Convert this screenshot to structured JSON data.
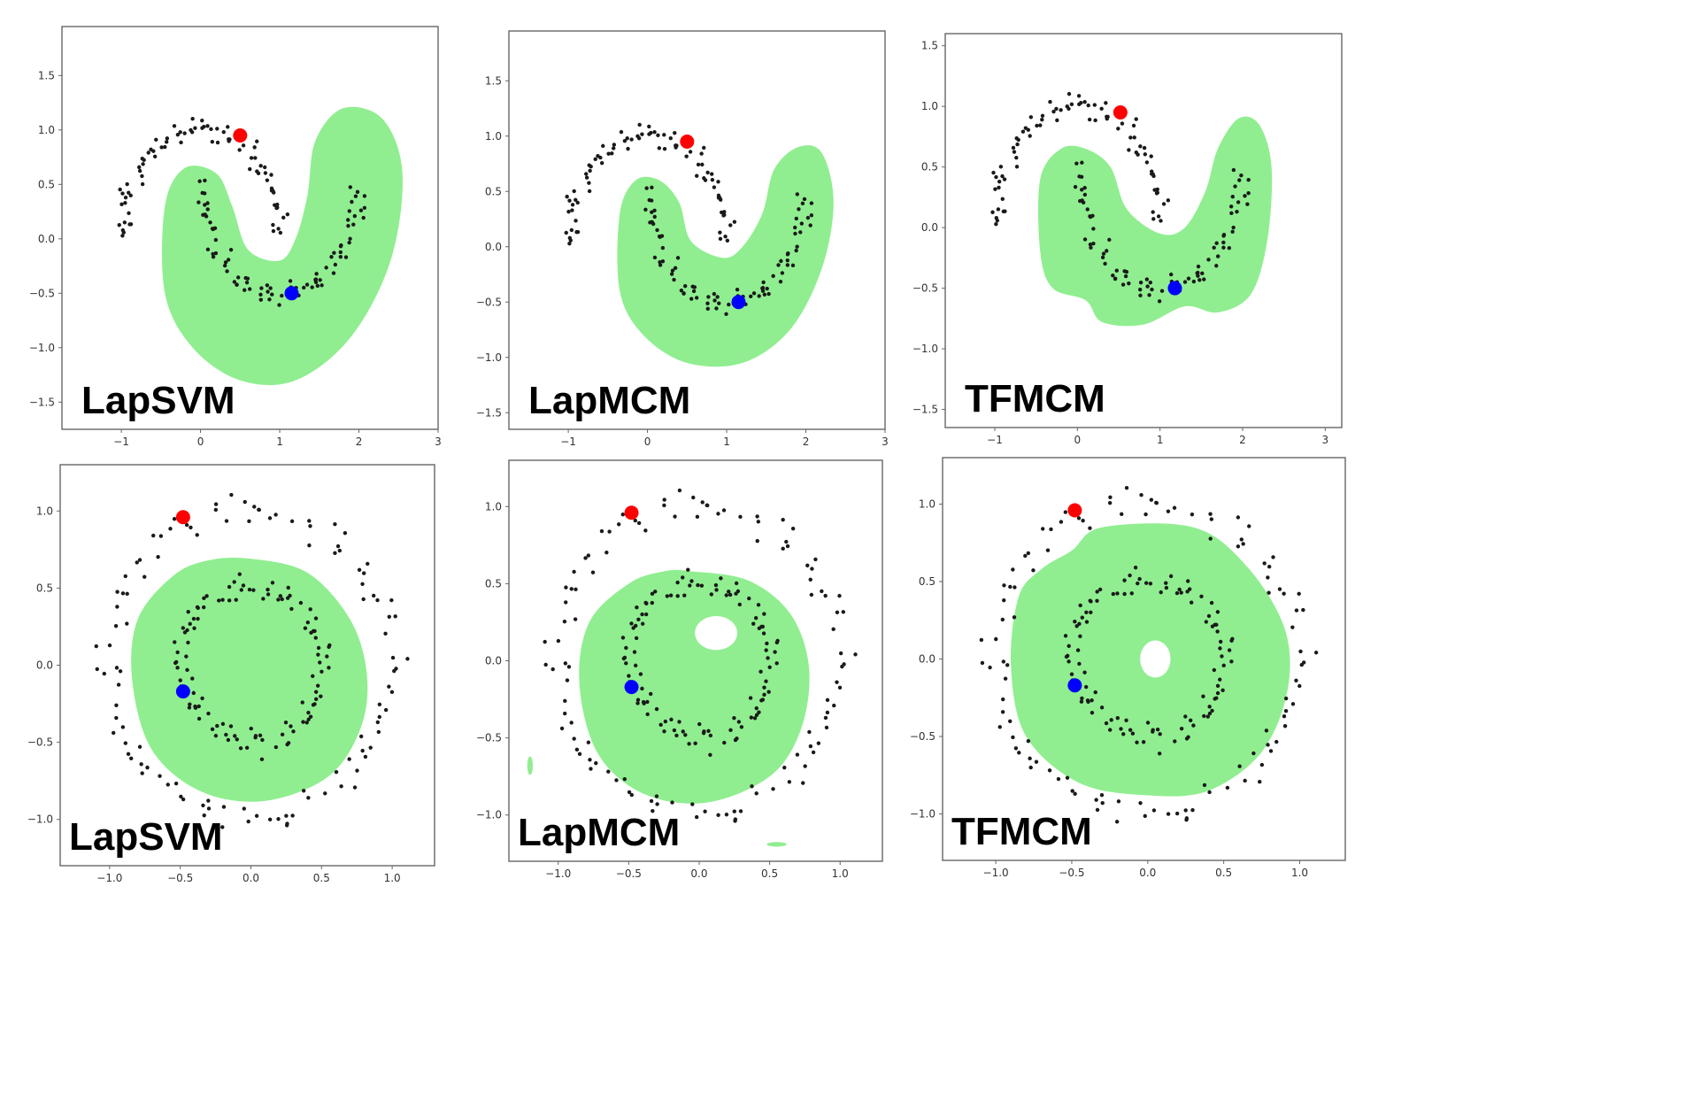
{
  "colors": {
    "decision_region": "#90ee90",
    "unlabeled_points": "#1a1a1a",
    "labeled_a": "#ff0000",
    "labeled_b": "#0000ff"
  },
  "chart_data": [
    {
      "type": "scatter",
      "title": "",
      "xlabel": "",
      "ylabel": "",
      "label": "LapSVM",
      "dataset": "moons",
      "xlim": [
        -1.75,
        3.0
      ],
      "ylim": [
        -1.75,
        1.95
      ],
      "xticks": [
        "-1",
        "0",
        "1",
        "2",
        "3"
      ],
      "yticks": [
        "1.5",
        "1.0",
        "0.5",
        "0.0",
        "-0.5",
        "-1.0",
        "-1.5"
      ],
      "labeled_points": [
        {
          "x": 0.5,
          "y": 0.95,
          "color": "red"
        },
        {
          "x": 1.15,
          "y": -0.5,
          "color": "blue"
        }
      ],
      "region_outline": [
        [
          -0.45,
          0.3
        ],
        [
          -0.45,
          -0.5
        ],
        [
          -0.1,
          -1.0
        ],
        [
          0.5,
          -1.3
        ],
        [
          1.2,
          -1.3
        ],
        [
          1.9,
          -0.9
        ],
        [
          2.4,
          -0.2
        ],
        [
          2.55,
          0.6
        ],
        [
          2.3,
          1.1
        ],
        [
          1.8,
          1.2
        ],
        [
          1.45,
          0.9
        ],
        [
          1.35,
          0.4
        ],
        [
          1.2,
          0.0
        ],
        [
          1.0,
          -0.2
        ],
        [
          0.6,
          -0.1
        ],
        [
          0.4,
          0.3
        ],
        [
          0.2,
          0.6
        ],
        [
          -0.2,
          0.65
        ]
      ],
      "region_holes": []
    },
    {
      "type": "scatter",
      "title": "",
      "xlabel": "",
      "ylabel": "",
      "label": "LapMCM",
      "dataset": "moons",
      "xlim": [
        -1.75,
        3.0
      ],
      "ylim": [
        -1.65,
        1.95
      ],
      "xticks": [
        "-1",
        "0",
        "1",
        "2",
        "3"
      ],
      "yticks": [
        "1.5",
        "1.0",
        "0.5",
        "0.0",
        "-0.5",
        "-1.0",
        "-1.5"
      ],
      "labeled_points": [
        {
          "x": 0.5,
          "y": 0.95,
          "color": "red"
        },
        {
          "x": 1.15,
          "y": -0.5,
          "color": "blue"
        }
      ],
      "region_outline": [
        [
          -0.35,
          0.3
        ],
        [
          -0.35,
          -0.4
        ],
        [
          -0.05,
          -0.8
        ],
        [
          0.5,
          -1.05
        ],
        [
          1.2,
          -1.05
        ],
        [
          1.8,
          -0.75
        ],
        [
          2.2,
          -0.2
        ],
        [
          2.35,
          0.4
        ],
        [
          2.2,
          0.85
        ],
        [
          1.9,
          0.9
        ],
        [
          1.6,
          0.7
        ],
        [
          1.45,
          0.3
        ],
        [
          1.2,
          0.0
        ],
        [
          0.95,
          -0.1
        ],
        [
          0.55,
          0.05
        ],
        [
          0.4,
          0.4
        ],
        [
          0.15,
          0.6
        ],
        [
          -0.15,
          0.6
        ]
      ],
      "region_holes": []
    },
    {
      "type": "scatter",
      "title": "",
      "xlabel": "",
      "ylabel": "",
      "label": "TFMCM",
      "dataset": "moons",
      "xlim": [
        -1.6,
        3.2
      ],
      "ylim": [
        -1.65,
        1.6
      ],
      "xticks": [
        "-1",
        "0",
        "1",
        "2",
        "3"
      ],
      "yticks": [
        "1.5",
        "1.0",
        "0.5",
        "0.0",
        "-0.5",
        "-1.0",
        "-1.5"
      ],
      "labeled_points": [
        {
          "x": 0.52,
          "y": 0.95,
          "color": "red"
        },
        {
          "x": 1.18,
          "y": -0.5,
          "color": "blue"
        }
      ],
      "region_outline": [
        [
          -0.45,
          0.4
        ],
        [
          -0.45,
          -0.2
        ],
        [
          -0.3,
          -0.5
        ],
        [
          0.1,
          -0.6
        ],
        [
          0.3,
          -0.78
        ],
        [
          0.8,
          -0.8
        ],
        [
          1.3,
          -0.65
        ],
        [
          1.7,
          -0.7
        ],
        [
          2.1,
          -0.55
        ],
        [
          2.3,
          -0.1
        ],
        [
          2.35,
          0.5
        ],
        [
          2.2,
          0.85
        ],
        [
          1.95,
          0.9
        ],
        [
          1.7,
          0.65
        ],
        [
          1.55,
          0.3
        ],
        [
          1.3,
          0.0
        ],
        [
          1.0,
          -0.05
        ],
        [
          0.6,
          0.15
        ],
        [
          0.4,
          0.5
        ],
        [
          0.1,
          0.65
        ],
        [
          -0.2,
          0.65
        ]
      ],
      "region_holes": []
    },
    {
      "type": "scatter",
      "title": "",
      "xlabel": "",
      "ylabel": "",
      "label": "LapSVM",
      "dataset": "circles",
      "xlim": [
        -1.35,
        1.3
      ],
      "ylim": [
        -1.3,
        1.3
      ],
      "xticks": [
        "-1.0",
        "-0.5",
        "0.0",
        "0.5",
        "1.0"
      ],
      "yticks": [
        "1.0",
        "0.5",
        "0.0",
        "-0.5",
        "-1.0"
      ],
      "labeled_points": [
        {
          "x": -0.48,
          "y": 0.96,
          "color": "red"
        },
        {
          "x": -0.48,
          "y": -0.17,
          "color": "blue"
        }
      ],
      "region_outline": [
        [
          0.0,
          0.69
        ],
        [
          0.4,
          0.6
        ],
        [
          0.7,
          0.3
        ],
        [
          0.82,
          -0.05
        ],
        [
          0.78,
          -0.4
        ],
        [
          0.55,
          -0.72
        ],
        [
          0.1,
          -0.88
        ],
        [
          -0.35,
          -0.82
        ],
        [
          -0.7,
          -0.55
        ],
        [
          -0.84,
          -0.1
        ],
        [
          -0.8,
          0.3
        ],
        [
          -0.55,
          0.58
        ],
        [
          -0.3,
          0.68
        ]
      ],
      "region_holes": []
    },
    {
      "type": "scatter",
      "title": "",
      "xlabel": "",
      "ylabel": "",
      "label": "LapMCM",
      "dataset": "circles",
      "xlim": [
        -1.35,
        1.3
      ],
      "ylim": [
        -1.3,
        1.3
      ],
      "xticks": [
        "-1.0",
        "-0.5",
        "0.0",
        "0.5",
        "1.0"
      ],
      "yticks": [
        "1.0",
        "0.5",
        "0.0",
        "-0.5",
        "-1.0"
      ],
      "labeled_points": [
        {
          "x": -0.48,
          "y": 0.96,
          "color": "red"
        },
        {
          "x": -0.48,
          "y": -0.17,
          "color": "blue"
        }
      ],
      "region_outline": [
        [
          -0.05,
          0.58
        ],
        [
          0.35,
          0.52
        ],
        [
          0.65,
          0.3
        ],
        [
          0.78,
          -0.05
        ],
        [
          0.72,
          -0.45
        ],
        [
          0.5,
          -0.75
        ],
        [
          0.05,
          -0.92
        ],
        [
          -0.4,
          -0.86
        ],
        [
          -0.72,
          -0.6
        ],
        [
          -0.85,
          -0.15
        ],
        [
          -0.78,
          0.25
        ],
        [
          -0.5,
          0.5
        ],
        [
          -0.25,
          0.58
        ]
      ],
      "region_holes": [
        {
          "cx": 0.12,
          "cy": 0.18,
          "rx": 0.15,
          "ry": 0.11
        }
      ],
      "extra_patches": [
        {
          "cx": -1.2,
          "cy": -0.68,
          "rx": 0.02,
          "ry": 0.06
        },
        {
          "cx": 0.55,
          "cy": -1.19,
          "rx": 0.07,
          "ry": 0.015
        }
      ]
    },
    {
      "type": "scatter",
      "title": "",
      "xlabel": "",
      "ylabel": "",
      "label": "TFMCM",
      "dataset": "circles",
      "xlim": [
        -1.35,
        1.3
      ],
      "ylim": [
        -1.3,
        1.3
      ],
      "xticks": [
        "-1.0",
        "-0.5",
        "0.0",
        "0.5",
        "1.0"
      ],
      "yticks": [
        "1.0",
        "0.5",
        "0.0",
        "-0.5",
        "-1.0"
      ],
      "labeled_points": [
        {
          "x": -0.48,
          "y": 0.96,
          "color": "red"
        },
        {
          "x": -0.48,
          "y": -0.17,
          "color": "blue"
        }
      ],
      "region_outline": [
        [
          -0.3,
          0.85
        ],
        [
          0.3,
          0.85
        ],
        [
          0.65,
          0.6
        ],
        [
          0.9,
          0.2
        ],
        [
          0.92,
          -0.2
        ],
        [
          0.75,
          -0.6
        ],
        [
          0.4,
          -0.85
        ],
        [
          0.0,
          -0.88
        ],
        [
          -0.45,
          -0.8
        ],
        [
          -0.8,
          -0.5
        ],
        [
          -0.9,
          -0.05
        ],
        [
          -0.85,
          0.4
        ],
        [
          -0.7,
          0.58
        ],
        [
          -0.5,
          0.7
        ]
      ],
      "region_holes": [
        {
          "cx": 0.05,
          "cy": 0.0,
          "rx": 0.1,
          "ry": 0.12
        }
      ]
    }
  ]
}
